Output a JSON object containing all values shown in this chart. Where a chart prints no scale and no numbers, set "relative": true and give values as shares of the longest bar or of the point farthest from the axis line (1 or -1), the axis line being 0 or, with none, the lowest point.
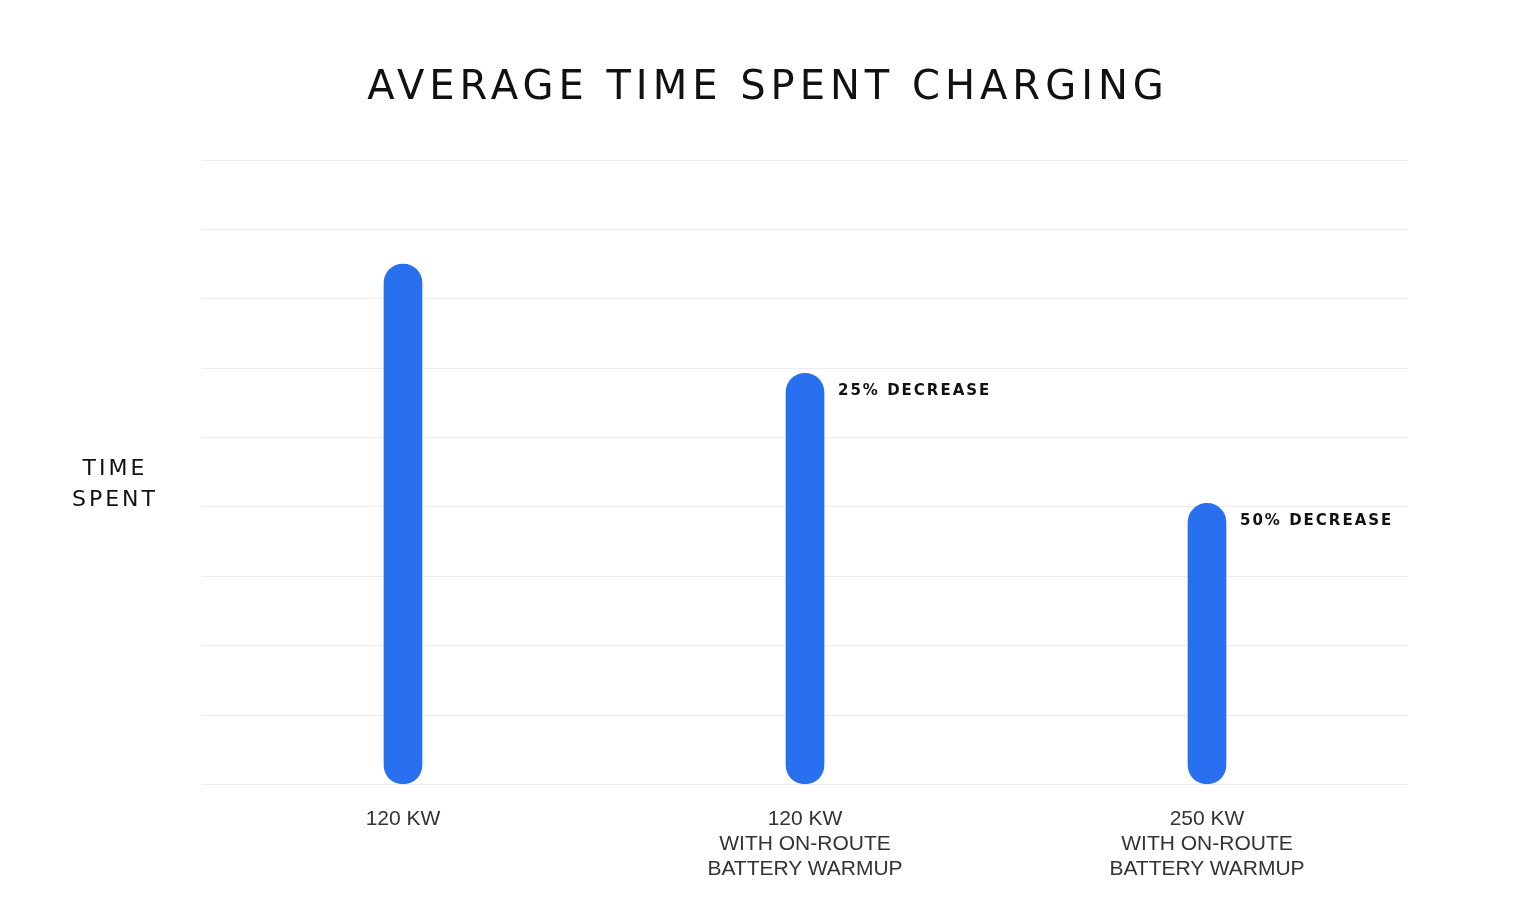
{
  "chart_data": {
    "type": "bar",
    "title": "AVERAGE TIME SPENT CHARGING",
    "ylabel": "TIME SPENT",
    "categories": [
      "120 KW",
      "120 KW\nWITH ON-ROUTE\nBATTERY WARMUP",
      "250 KW\nWITH ON-ROUTE\nBATTERY WARMUP"
    ],
    "values": [
      1,
      0.79,
      0.54
    ],
    "color": "#2870f0",
    "relative": true,
    "grid": "y",
    "legend": false,
    "annotations": [
      {
        "text": "25% DECREASE",
        "x": "120 KW\nWITH ON-ROUTE\nBATTERY WARMUP",
        "y": 0.79
      },
      {
        "text": "50% DECREASE",
        "x": "250 KW\nWITH ON-ROUTE\nBATTERY WARMUP",
        "y": 0.54
      }
    ]
  }
}
